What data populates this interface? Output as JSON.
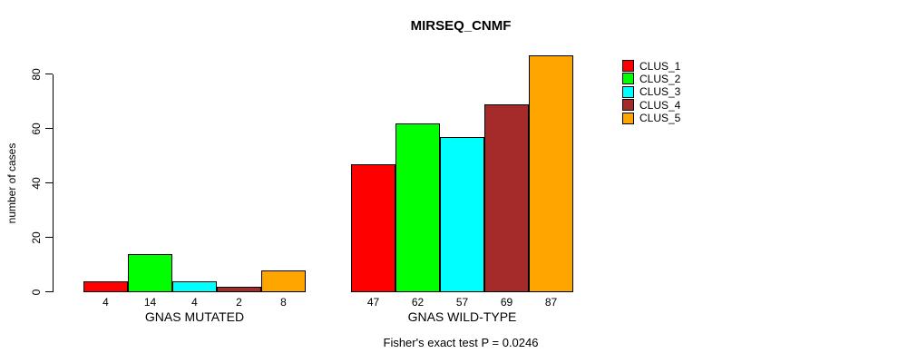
{
  "chart_data": {
    "type": "bar",
    "title": "MIRSEQ_CNMF",
    "ylabel": "number of cases",
    "xlabel": "",
    "yticks": [
      0,
      20,
      40,
      60,
      80
    ],
    "ylim": [
      0,
      88
    ],
    "grid": false,
    "legend_position": "right-outside",
    "categories": [
      "GNAS MUTATED",
      "GNAS WILD-TYPE"
    ],
    "series": [
      {
        "name": "CLUS_1",
        "color": "#FF0000",
        "values": [
          4,
          47
        ]
      },
      {
        "name": "CLUS_2",
        "color": "#00FF00",
        "values": [
          14,
          62
        ]
      },
      {
        "name": "CLUS_3",
        "color": "#00FFFF",
        "values": [
          4,
          57
        ]
      },
      {
        "name": "CLUS_4",
        "color": "#A52A2A",
        "values": [
          2,
          69
        ]
      },
      {
        "name": "CLUS_5",
        "color": "#FFA500",
        "values": [
          8,
          87
        ]
      }
    ],
    "bar_value_labels": true,
    "caption": "Fisher's exact test P = 0.0246"
  }
}
